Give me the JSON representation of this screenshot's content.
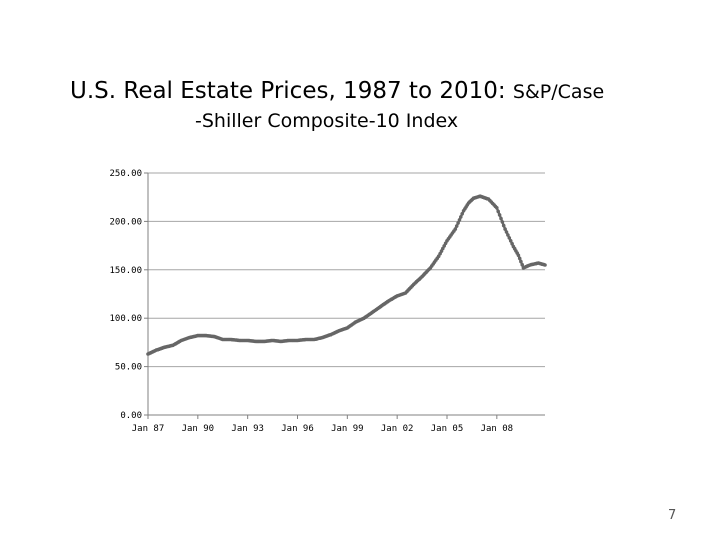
{
  "title": {
    "line1_main": "U.S. Real Estate Prices, 1987 to 2010:",
    "line1_tail": "S&P/Case",
    "line2": "-Shiller Composite-10 Index"
  },
  "page_number": "7",
  "chart_data": {
    "type": "line",
    "title": "U.S. Real Estate Prices, 1987 to 2010: S&P/Case-Shiller Composite-10 Index",
    "xlabel": "",
    "ylabel": "",
    "ylim": [
      0,
      250
    ],
    "y_ticks": [
      0,
      50,
      100,
      150,
      200,
      250
    ],
    "y_tick_labels": [
      "0.00",
      "50.00",
      "100.00",
      "150.00",
      "200.00",
      "250.00"
    ],
    "x_ticks": [
      1987,
      1990,
      1993,
      1996,
      1999,
      2002,
      2005,
      2008
    ],
    "x_tick_labels": [
      "Jan 87",
      "Jan 90",
      "Jan 93",
      "Jan 96",
      "Jan 99",
      "Jan 02",
      "Jan 05",
      "Jan 08"
    ],
    "xlim": [
      1987,
      2010.9
    ],
    "grid": true,
    "series": [
      {
        "name": "S&P/Case-Shiller Composite-10",
        "color": "#666666",
        "x": [
          1987.0,
          1987.5,
          1988.0,
          1988.5,
          1989.0,
          1989.5,
          1990.0,
          1990.5,
          1991.0,
          1991.5,
          1992.0,
          1992.5,
          1993.0,
          1993.5,
          1994.0,
          1994.5,
          1995.0,
          1995.5,
          1996.0,
          1996.5,
          1997.0,
          1997.5,
          1998.0,
          1998.5,
          1999.0,
          1999.5,
          2000.0,
          2000.5,
          2001.0,
          2001.5,
          2002.0,
          2002.5,
          2003.0,
          2003.5,
          2004.0,
          2004.5,
          2005.0,
          2005.5,
          2006.0,
          2006.3,
          2006.6,
          2007.0,
          2007.5,
          2008.0,
          2008.5,
          2009.0,
          2009.3,
          2009.6,
          2010.0,
          2010.5,
          2010.9
        ],
        "values": [
          63,
          67,
          70,
          72,
          77,
          80,
          82,
          82,
          81,
          78,
          78,
          77,
          77,
          76,
          76,
          77,
          76,
          77,
          77,
          78,
          78,
          80,
          83,
          87,
          90,
          96,
          100,
          106,
          112,
          118,
          123,
          126,
          135,
          143,
          152,
          164,
          180,
          192,
          211,
          219,
          224,
          226,
          223,
          214,
          192,
          174,
          165,
          152,
          155,
          157,
          155
        ]
      }
    ]
  }
}
